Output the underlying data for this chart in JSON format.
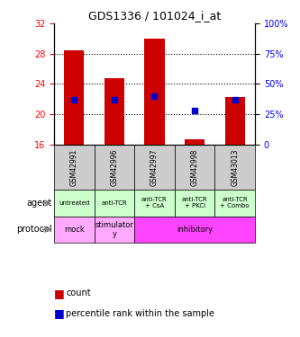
{
  "title": "GDS1336 / 101024_i_at",
  "samples": [
    "GSM42991",
    "GSM42996",
    "GSM42997",
    "GSM42998",
    "GSM43013"
  ],
  "bar_bottom": [
    16,
    16,
    16,
    16,
    16
  ],
  "bar_heights": [
    12.5,
    8.8,
    14.0,
    0.7,
    6.3
  ],
  "bar_tops": [
    28.5,
    24.8,
    30.0,
    16.7,
    22.3
  ],
  "percentile_values": [
    22.0,
    22.0,
    22.2,
    20.7,
    22.0
  ],
  "percentile_rank": [
    37,
    37,
    40,
    28,
    37
  ],
  "ylim_left": [
    16,
    32
  ],
  "ylim_right": [
    0,
    100
  ],
  "yticks_left": [
    16,
    20,
    24,
    28,
    32
  ],
  "yticks_right": [
    0,
    25,
    50,
    75,
    100
  ],
  "bar_color": "#cc0000",
  "dot_color": "#0000cc",
  "agent_labels": [
    "untreated",
    "anti-TCR",
    "anti-TCR\n+ CsA",
    "anti-TCR\n+ PKCi",
    "anti-TCR\n+ Combo"
  ],
  "agent_bg": "#ccffcc",
  "protocol_labels": [
    "mock",
    "stimulator\ny",
    "inhibitory",
    "inhibitory",
    "inhibitory"
  ],
  "protocol_bg_mock": "#ffccff",
  "protocol_bg_stimulatory": "#ffccff",
  "protocol_bg_inhibitory": "#ff66ff",
  "sample_bg": "#cccccc",
  "grid_color": "#888888",
  "legend_count_color": "#cc0000",
  "legend_pct_color": "#0000cc"
}
